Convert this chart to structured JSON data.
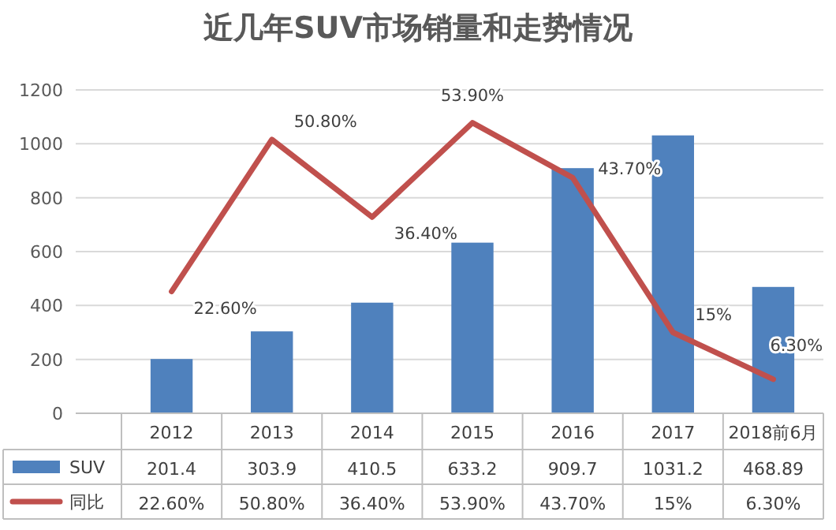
{
  "chart_data": {
    "type": "bar",
    "title": "近几年SUV市场销量和走势情况",
    "categories": [
      "2012",
      "2013",
      "2014",
      "2015",
      "2016",
      "2017",
      "2018前6月"
    ],
    "series": [
      {
        "name": "SUV",
        "color": "#4f81bd",
        "values": [
          201.4,
          303.9,
          410.5,
          633.2,
          909.7,
          1031.2,
          468.89
        ],
        "value_labels": [
          "201.4",
          "303.9",
          "410.5",
          "633.2",
          "909.7",
          "1031.2",
          "468.89"
        ]
      },
      {
        "name": "同比",
        "type": "line",
        "axis": "y2",
        "color": "#c0504d",
        "values": [
          22.6,
          50.8,
          36.4,
          53.9,
          43.7,
          15,
          6.3
        ],
        "value_labels": [
          "22.60%",
          "50.80%",
          "36.40%",
          "53.90%",
          "43.70%",
          "15%",
          "6.30%"
        ]
      }
    ],
    "ylim": [
      0,
      1200
    ],
    "yticks": [
      0,
      200,
      400,
      600,
      800,
      1000,
      1200
    ],
    "y2lim": [
      0,
      60
    ],
    "grid": "y",
    "legend": "bottom",
    "marker": "none",
    "line_style": "solid"
  }
}
